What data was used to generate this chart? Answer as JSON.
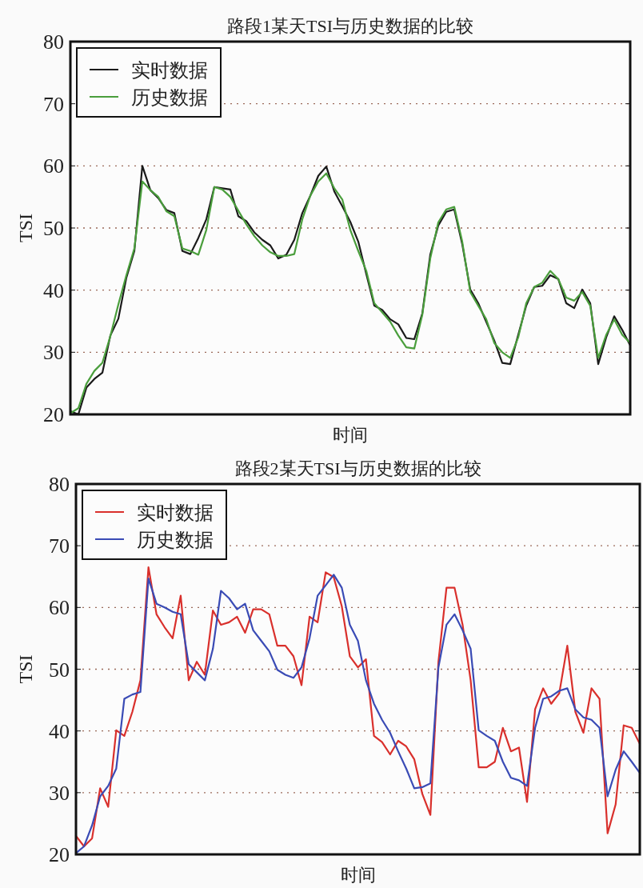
{
  "chart_data": [
    {
      "type": "line",
      "title": "路段1某天TSI与历史数据的比较",
      "xlabel": "时间",
      "ylabel": "TSI",
      "categories": [
        null,
        null,
        null,
        null,
        null,
        null,
        null,
        null,
        null,
        null,
        null,
        null,
        null,
        null,
        null,
        null,
        null,
        null,
        null,
        null,
        null,
        null,
        null,
        null,
        null,
        null,
        null,
        null,
        null,
        null,
        null,
        null,
        null,
        null,
        null,
        null,
        null,
        null,
        null,
        null,
        null,
        null,
        null,
        null,
        null,
        null,
        null,
        null,
        null,
        null,
        null,
        null,
        null,
        null,
        null,
        null,
        null,
        null,
        null,
        null,
        null,
        null,
        null,
        null,
        null,
        null,
        null,
        null,
        null,
        null,
        null
      ],
      "ylim": [
        20,
        80
      ],
      "yticks": [
        20,
        30,
        40,
        50,
        60,
        70,
        80
      ],
      "grid": "y",
      "legend": "top left",
      "series": [
        {
          "name": "实时数据",
          "color": "#1a1a1a",
          "values": [
            20.5,
            20,
            24.3,
            25.7,
            26.7,
            32.7,
            35.4,
            42.0,
            46.3,
            60.0,
            56.1,
            54.8,
            52.9,
            52.4,
            46.3,
            45.8,
            48.4,
            51.4,
            56.6,
            56.4,
            56.2,
            51.9,
            51.1,
            49.3,
            48.1,
            47.2,
            45.1,
            45.7,
            48.1,
            52.4,
            55.2,
            58.4,
            59.9,
            55.9,
            53.5,
            51.0,
            47.8,
            42.6,
            37.5,
            36.8,
            35.3,
            34.5,
            32.3,
            32.1,
            36.2,
            45.7,
            50.4,
            52.6,
            53.0,
            47.4,
            40.1,
            37.9,
            34.9,
            31.9,
            28.3,
            28.1,
            32.8,
            37.5,
            40.5,
            40.7,
            42.4,
            41.8,
            37.9,
            37.1,
            40.1,
            37.9,
            28.1,
            32.4,
            35.8,
            33.6,
            31.1
          ]
        },
        {
          "name": "历史数据",
          "color": "#4a9e3c",
          "values": [
            20.2,
            21,
            24.9,
            27.0,
            28.3,
            32.6,
            37.7,
            42.4,
            46.7,
            57.5,
            56.1,
            55.0,
            52.7,
            51.9,
            46.7,
            46.3,
            45.7,
            49.7,
            56.6,
            56.2,
            55.0,
            52.8,
            50.6,
            48.7,
            47.2,
            46.1,
            45.5,
            45.5,
            45.8,
            51.4,
            55.2,
            57.5,
            58.8,
            56.4,
            54.6,
            49.7,
            46.3,
            43.1,
            37.9,
            36.4,
            34.9,
            32.7,
            30.8,
            30.6,
            36.0,
            45.1,
            50.9,
            53.0,
            53.4,
            47.8,
            39.7,
            37.5,
            35.3,
            31.5,
            30.0,
            29.1,
            32.4,
            37.9,
            40.5,
            41.2,
            43.1,
            41.8,
            38.8,
            38.3,
            39.7,
            37.5,
            29.1,
            32.8,
            35.3,
            32.8,
            31.5
          ]
        }
      ]
    },
    {
      "type": "line",
      "title": "路段2某天TSI与历史数据的比较",
      "xlabel": "时间",
      "ylabel": "TSI",
      "categories": [
        null,
        null,
        null,
        null,
        null,
        null,
        null,
        null,
        null,
        null,
        null,
        null,
        null,
        null,
        null,
        null,
        null,
        null,
        null,
        null,
        null,
        null,
        null,
        null,
        null,
        null,
        null,
        null,
        null,
        null,
        null,
        null,
        null,
        null,
        null,
        null,
        null,
        null,
        null,
        null,
        null,
        null,
        null,
        null,
        null,
        null,
        null,
        null,
        null,
        null,
        null,
        null,
        null,
        null,
        null,
        null,
        null,
        null,
        null,
        null,
        null,
        null,
        null,
        null,
        null,
        null,
        null,
        null,
        null,
        null,
        null
      ],
      "ylim": [
        20,
        80
      ],
      "yticks": [
        20,
        30,
        40,
        50,
        60,
        70,
        80
      ],
      "grid": "y",
      "legend": "top left",
      "series": [
        {
          "name": "实时数据",
          "color": "#d9302c",
          "values": [
            23.0,
            21.3,
            22.6,
            30.7,
            27.7,
            40.1,
            39.2,
            43.1,
            48.2,
            66.5,
            58.9,
            56.8,
            55.0,
            61.9,
            48.2,
            51.2,
            49.1,
            59.5,
            57.2,
            57.6,
            58.5,
            55.9,
            59.7,
            59.7,
            58.9,
            53.8,
            53.8,
            52.1,
            47.4,
            58.5,
            57.6,
            65.7,
            64.9,
            60.2,
            52.1,
            50.3,
            51.6,
            39.2,
            38.2,
            36.2,
            38.4,
            37.5,
            35.4,
            29.8,
            26.4,
            51.2,
            63.2,
            63.2,
            57.2,
            48.2,
            34.1,
            34.1,
            35.0,
            40.5,
            36.7,
            37.3,
            28.5,
            43.5,
            46.9,
            44.4,
            46.1,
            53.8,
            43.1,
            39.7,
            46.9,
            45.2,
            23.4,
            28.1,
            40.9,
            40.5,
            37.9
          ]
        },
        {
          "name": "历史数据",
          "color": "#3a4bb5",
          "values": [
            20.2,
            21.3,
            24.7,
            29.4,
            31.1,
            33.9,
            45.2,
            45.9,
            46.3,
            64.7,
            60.6,
            60.0,
            59.3,
            58.9,
            50.8,
            49.5,
            48.2,
            53.3,
            62.7,
            61.5,
            59.7,
            60.6,
            56.3,
            54.6,
            52.9,
            49.9,
            49.1,
            48.6,
            50.3,
            55.0,
            61.9,
            63.6,
            65.3,
            63.2,
            57.2,
            54.6,
            48.2,
            44.4,
            41.8,
            39.7,
            36.7,
            33.9,
            30.7,
            30.9,
            31.5,
            50.3,
            57.2,
            58.9,
            56.3,
            53.3,
            40.1,
            39.2,
            38.4,
            35.0,
            32.4,
            32.0,
            31.1,
            40.5,
            45.2,
            45.6,
            46.5,
            46.9,
            43.5,
            42.2,
            41.8,
            40.5,
            29.4,
            33.7,
            36.7,
            35.0,
            33.2
          ]
        }
      ]
    }
  ]
}
